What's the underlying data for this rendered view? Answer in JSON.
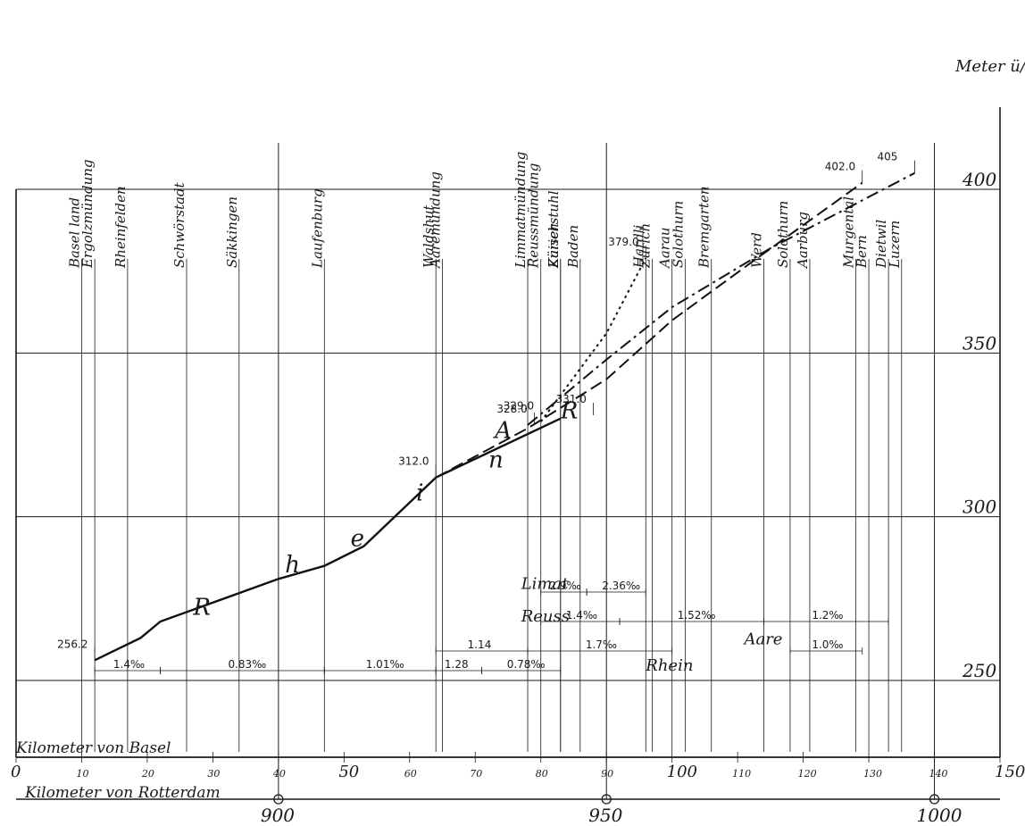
{
  "chart_data": {
    "type": "line",
    "ylabel": "Meter ü/Meer",
    "xlabel_basel": "Kilometer von Basel",
    "xlabel_rotterdam": "Kilometer von Rotterdam",
    "ylim": [
      250,
      400
    ],
    "xlim": [
      0,
      150
    ],
    "y_ticks": [
      "250",
      "300",
      "350",
      "400"
    ],
    "x_ticks_basel": [
      "0",
      "10",
      "20",
      "30",
      "40",
      "50",
      "60",
      "70",
      "80",
      "90",
      "100",
      "110",
      "120",
      "130",
      "140",
      "150"
    ],
    "x_ticks_rotterdam": [
      "900",
      "950",
      "1000"
    ],
    "rotterdam_ticks_at_basel_km": [
      40,
      90,
      140
    ],
    "series": [
      {
        "name": "Rhein",
        "style": "solid",
        "points": [
          [
            12,
            256.2
          ],
          [
            19,
            263
          ],
          [
            22,
            268
          ],
          [
            40,
            281
          ],
          [
            47,
            285
          ],
          [
            53,
            291
          ],
          [
            64,
            312.0
          ],
          [
            83,
            330
          ]
        ]
      },
      {
        "name": "Aare",
        "style": "dash",
        "points": [
          [
            64,
            312.0
          ],
          [
            78,
            327
          ],
          [
            90,
            342
          ],
          [
            100,
            360
          ],
          [
            113,
            379
          ],
          [
            129,
            402.0
          ]
        ]
      },
      {
        "name": "Reuss",
        "style": "dash-dot",
        "points": [
          [
            78,
            328.0
          ],
          [
            90,
            348
          ],
          [
            100,
            364
          ],
          [
            115,
            382
          ],
          [
            137,
            405
          ]
        ]
      },
      {
        "name": "Limat",
        "style": "dotted",
        "points": [
          [
            80,
            329.0
          ],
          [
            90,
            356
          ],
          [
            96,
            379.0
          ]
        ]
      }
    ],
    "elevation_labels": [
      {
        "text": "256.2",
        "km": 12,
        "m": 256.2
      },
      {
        "text": "312.0",
        "km": 64,
        "m": 312.0
      },
      {
        "text": "329.0",
        "km": 80,
        "m": 329.0
      },
      {
        "text": "328.0",
        "km": 79,
        "m": 328.0
      },
      {
        "text": "331.0",
        "km": 88,
        "m": 331.0
      },
      {
        "text": "379.0",
        "km": 96,
        "m": 379.0
      },
      {
        "text": "402.0",
        "km": 129,
        "m": 402.0
      },
      {
        "text": "405",
        "km": 137,
        "m": 405
      }
    ],
    "places": [
      {
        "text": "Ergolzmündung",
        "km": 12
      },
      {
        "text": "Basel land",
        "km": 10
      },
      {
        "text": "Rheinfelden",
        "km": 17
      },
      {
        "text": "Schwörstadt",
        "km": 26
      },
      {
        "text": "Säkkingen",
        "km": 34
      },
      {
        "text": "Laufenburg",
        "km": 47
      },
      {
        "text": "Waldshut",
        "km": 64
      },
      {
        "text": "Aaremündung",
        "km": 65
      },
      {
        "text": "Limmatmündung",
        "km": 78
      },
      {
        "text": "Reussmündung",
        "km": 80
      },
      {
        "text": "Kaiserstuhl",
        "km": 83
      },
      {
        "text": "Zürich",
        "km": 83
      },
      {
        "text": "Baden",
        "km": 86
      },
      {
        "text": "Hardli",
        "km": 96
      },
      {
        "text": "Zürich",
        "km": 97
      },
      {
        "text": "Aarau",
        "km": 100
      },
      {
        "text": "Solothurn",
        "km": 102
      },
      {
        "text": "Bremgarten",
        "km": 106
      },
      {
        "text": "Werd",
        "km": 114
      },
      {
        "text": "Solothurn",
        "km": 118
      },
      {
        "text": "Aarburg",
        "km": 121
      },
      {
        "text": "Murgental",
        "km": 128
      },
      {
        "text": "Bern",
        "km": 130
      },
      {
        "text": "Dietwil",
        "km": 133
      },
      {
        "text": "Luzern",
        "km": 135
      }
    ],
    "river_letters": [
      {
        "text": "R",
        "km": 27,
        "m": 270
      },
      {
        "text": "h",
        "km": 41,
        "m": 283
      },
      {
        "text": "e",
        "km": 51,
        "m": 291
      },
      {
        "text": "i",
        "km": 61,
        "m": 305
      },
      {
        "text": "n",
        "km": 72,
        "m": 315
      },
      {
        "text": "A",
        "km": 73,
        "m": 324
      },
      {
        "text": "R",
        "km": 83,
        "m": 330
      },
      {
        "text": "Limat",
        "km": 77,
        "m": 278
      },
      {
        "text": "Reuss",
        "km": 77,
        "m": 268
      },
      {
        "text": "Rhein",
        "km": 96,
        "m": 253
      },
      {
        "text": "Aare",
        "km": 111,
        "m": 261
      }
    ],
    "gradient_labels": [
      {
        "text": "1.4‰",
        "from": 12,
        "to": 22,
        "m": 253
      },
      {
        "text": "0.83‰",
        "from": 22,
        "to": 47,
        "m": 253
      },
      {
        "text": "1.01‰",
        "from": 47,
        "to": 64,
        "m": 253
      },
      {
        "text": "1.28",
        "from": 64,
        "to": 71,
        "m": 253
      },
      {
        "text": "0.78‰",
        "from": 71,
        "to": 83,
        "m": 253
      },
      {
        "text": "1.14",
        "from": 64,
        "to": 78,
        "m": 259
      },
      {
        "text": "1.7‰",
        "from": 78,
        "to": 100,
        "m": 259
      },
      {
        "text": "1.0‰",
        "from": 118,
        "to": 129,
        "m": 259
      },
      {
        "text": "1.4‰",
        "from": 80,
        "to": 92,
        "m": 268
      },
      {
        "text": "1.52‰",
        "from": 92,
        "to": 114,
        "m": 268
      },
      {
        "text": "1.2‰",
        "from": 114,
        "to": 133,
        "m": 268
      },
      {
        "text": "2.9‰",
        "from": 80,
        "to": 87,
        "m": 277
      },
      {
        "text": "2.36‰",
        "from": 87,
        "to": 96,
        "m": 277
      }
    ]
  }
}
